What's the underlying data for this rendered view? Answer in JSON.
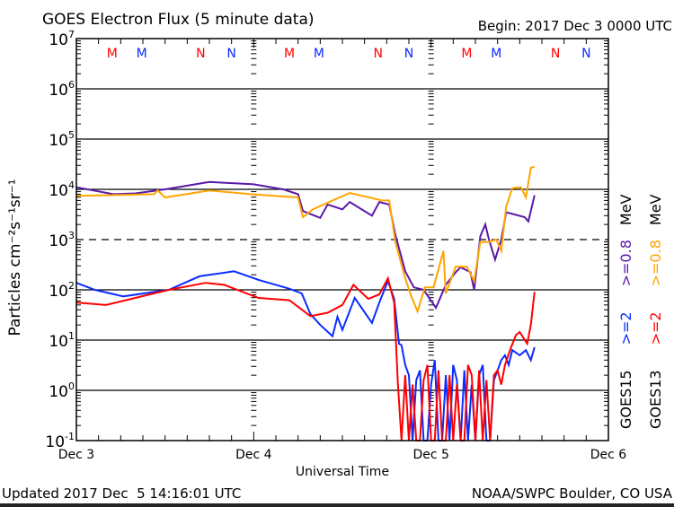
{
  "chart_data": {
    "type": "line",
    "title": "GOES Electron Flux (5 minute data)",
    "begin_label": "Begin: 2017 Dec 3 0000 UTC",
    "xlabel": "Universal Time",
    "ylabel": "Particles cm⁻²s⁻¹sr⁻¹",
    "y_scale": "log",
    "ylim": [
      0.1,
      10000000
    ],
    "y_tick_labels": [
      {
        "base": "10",
        "exp": "7",
        "value": 10000000
      },
      {
        "base": "10",
        "exp": "6",
        "value": 1000000
      },
      {
        "base": "10",
        "exp": "5",
        "value": 100000
      },
      {
        "base": "10",
        "exp": "4",
        "value": 10000
      },
      {
        "base": "10",
        "exp": "3",
        "value": 1000
      },
      {
        "base": "10",
        "exp": "2",
        "value": 100
      },
      {
        "base": "10",
        "exp": "1",
        "value": 10
      },
      {
        "base": "10",
        "exp": "0",
        "value": 1
      },
      {
        "base": "10",
        "exp": "-1",
        "value": 0.1
      }
    ],
    "xlim": [
      "12-03 00:00",
      "12-06 00:00"
    ],
    "x_tick_labels": [
      {
        "label": "Dec 3",
        "time": "12-03 00:00"
      },
      {
        "label": "Dec 4",
        "time": "12-04 00:00"
      },
      {
        "label": "Dec 5",
        "time": "12-05 00:00"
      },
      {
        "label": "Dec 6",
        "time": "12-06 00:00"
      }
    ],
    "threshold": {
      "value": 1000,
      "style": "dashed"
    },
    "grid": "horizontal at each decade",
    "markers": [
      {
        "label": "M",
        "color": "#ff0000",
        "time": "12-03 04:50"
      },
      {
        "label": "M",
        "color": "#0a2cff",
        "time": "12-03 08:50"
      },
      {
        "label": "N",
        "color": "#ff0000",
        "time": "12-03 16:50"
      },
      {
        "label": "N",
        "color": "#0a2cff",
        "time": "12-03 21:00"
      },
      {
        "label": "M",
        "color": "#ff0000",
        "time": "12-04 04:50"
      },
      {
        "label": "M",
        "color": "#0a2cff",
        "time": "12-04 08:50"
      },
      {
        "label": "N",
        "color": "#ff0000",
        "time": "12-04 16:50"
      },
      {
        "label": "N",
        "color": "#0a2cff",
        "time": "12-04 21:00"
      },
      {
        "label": "M",
        "color": "#ff0000",
        "time": "12-05 04:50"
      },
      {
        "label": "M",
        "color": "#0a2cff",
        "time": "12-05 08:50"
      },
      {
        "label": "N",
        "color": "#ff0000",
        "time": "12-05 16:50"
      },
      {
        "label": "N",
        "color": "#0a2cff",
        "time": "12-05 21:00"
      }
    ],
    "legend": {
      "placement": "right, vertical",
      "columns": [
        {
          "satellite": "GOES15",
          "entries": [
            {
              "label": ">=2",
              "color": "#0a2cff"
            },
            {
              "label": ">=0.8",
              "color": "#5a18a8"
            }
          ],
          "unit": "MeV"
        },
        {
          "satellite": "GOES13",
          "entries": [
            {
              "label": ">=2",
              "color": "#ff0000"
            },
            {
              "label": ">=0.8",
              "color": "#ffa500"
            }
          ],
          "unit": "MeV"
        }
      ]
    },
    "series": [
      {
        "name": "GOES15 >=0.8 MeV",
        "color": "#5a18a8",
        "points": [
          [
            "12-03 00:00",
            11000
          ],
          [
            "12-03 05:00",
            8000
          ],
          [
            "12-03 08:00",
            8300
          ],
          [
            "12-03 12:00",
            10000
          ],
          [
            "12-03 18:00",
            14000
          ],
          [
            "12-04 00:00",
            12600
          ],
          [
            "12-04 04:00",
            10000
          ],
          [
            "12-04 06:00",
            8000
          ],
          [
            "12-04 06:40",
            3700
          ],
          [
            "12-04 09:00",
            2700
          ],
          [
            "12-04 10:00",
            5000
          ],
          [
            "12-04 12:00",
            4000
          ],
          [
            "12-04 13:00",
            5600
          ],
          [
            "12-04 16:00",
            3000
          ],
          [
            "12-04 17:00",
            5600
          ],
          [
            "12-04 18:20",
            5000
          ],
          [
            "12-04 19:10",
            1260
          ],
          [
            "12-04 20:30",
            234
          ],
          [
            "12-04 21:40",
            112
          ],
          [
            "12-04 23:00",
            100
          ],
          [
            "12-05 00:40",
            44
          ],
          [
            "12-05 02:00",
            126
          ],
          [
            "12-05 03:20",
            224
          ],
          [
            "12-05 04:00",
            282
          ],
          [
            "12-05 05:20",
            224
          ],
          [
            "12-05 05:50",
            100
          ],
          [
            "12-05 06:40",
            1170
          ],
          [
            "12-05 07:20",
            2000
          ],
          [
            "12-05 07:50",
            1000
          ],
          [
            "12-05 08:40",
            400
          ],
          [
            "12-05 09:30",
            1000
          ],
          [
            "12-05 10:10",
            3500
          ],
          [
            "12-05 12:40",
            2800
          ],
          [
            "12-05 13:10",
            2300
          ],
          [
            "12-05 14:00",
            7600
          ]
        ]
      },
      {
        "name": "GOES13 >=0.8 MeV",
        "color": "#ffa500",
        "points": [
          [
            "12-03 00:00",
            7400
          ],
          [
            "12-03 03:00",
            7600
          ],
          [
            "12-03 10:30",
            8000
          ],
          [
            "12-03 11:00",
            9500
          ],
          [
            "12-03 12:00",
            6900
          ],
          [
            "12-03 18:00",
            9500
          ],
          [
            "12-04 00:00",
            7900
          ],
          [
            "12-04 06:00",
            6900
          ],
          [
            "12-04 06:40",
            2800
          ],
          [
            "12-04 08:00",
            4000
          ],
          [
            "12-04 11:00",
            6300
          ],
          [
            "12-04 13:00",
            8500
          ],
          [
            "12-04 17:20",
            6000
          ],
          [
            "12-04 18:20",
            6000
          ],
          [
            "12-04 19:10",
            900
          ],
          [
            "12-04 20:30",
            170
          ],
          [
            "12-04 21:20",
            74
          ],
          [
            "12-04 22:10",
            37
          ],
          [
            "12-04 23:10",
            112
          ],
          [
            "12-05 00:20",
            112
          ],
          [
            "12-05 01:40",
            590
          ],
          [
            "12-05 02:00",
            85
          ],
          [
            "12-05 03:20",
            290
          ],
          [
            "12-05 04:50",
            290
          ],
          [
            "12-05 05:50",
            150
          ],
          [
            "12-05 06:40",
            900
          ],
          [
            "12-05 07:50",
            900
          ],
          [
            "12-05 08:50",
            1000
          ],
          [
            "12-05 09:30",
            590
          ],
          [
            "12-05 10:10",
            4600
          ],
          [
            "12-05 11:00",
            10500
          ],
          [
            "12-05 12:10",
            11000
          ],
          [
            "12-05 12:50",
            6900
          ],
          [
            "12-05 13:30",
            27000
          ],
          [
            "12-05 14:00",
            28000
          ]
        ]
      },
      {
        "name": "GOES15 >=2 MeV",
        "color": "#0a2cff",
        "points": [
          [
            "12-03 00:00",
            138
          ],
          [
            "12-03 02:30",
            100
          ],
          [
            "12-03 06:20",
            74
          ],
          [
            "12-03 12:30",
            100
          ],
          [
            "12-03 16:40",
            186
          ],
          [
            "12-03 21:20",
            234
          ],
          [
            "12-04 00:40",
            158
          ],
          [
            "12-04 04:50",
            105
          ],
          [
            "12-04 06:30",
            85
          ],
          [
            "12-04 07:40",
            33
          ],
          [
            "12-04 09:00",
            20
          ],
          [
            "12-04 10:40",
            12
          ],
          [
            "12-04 11:20",
            29
          ],
          [
            "12-04 12:00",
            16
          ],
          [
            "12-04 13:40",
            69
          ],
          [
            "12-04 16:00",
            22
          ],
          [
            "12-04 17:00",
            56
          ],
          [
            "12-04 18:10",
            151
          ],
          [
            "12-04 19:00",
            66
          ],
          [
            "12-04 19:40",
            8.5
          ],
          [
            "12-04 20:00",
            7.9
          ],
          [
            "12-04 20:30",
            3.2
          ],
          [
            "12-04 21:00",
            2
          ],
          [
            "12-04 21:30",
            0.1
          ],
          [
            "12-04 22:00",
            1.6
          ],
          [
            "12-04 22:30",
            2.5
          ],
          [
            "12-04 23:00",
            0.1
          ],
          [
            "12-04 23:30",
            0.1
          ],
          [
            "12-05 00:00",
            1.3
          ],
          [
            "12-05 00:30",
            4
          ],
          [
            "12-05 01:00",
            0.1
          ],
          [
            "12-05 01:30",
            0.1
          ],
          [
            "12-05 02:00",
            2
          ],
          [
            "12-05 02:30",
            0.1
          ],
          [
            "12-05 03:00",
            3.2
          ],
          [
            "12-05 03:30",
            1.6
          ],
          [
            "12-05 04:00",
            0.1
          ],
          [
            "12-05 04:30",
            2.5
          ],
          [
            "12-05 05:00",
            0.1
          ],
          [
            "12-05 05:30",
            1.3
          ],
          [
            "12-05 06:00",
            0.1
          ],
          [
            "12-05 06:30",
            2
          ],
          [
            "12-05 07:00",
            3.2
          ],
          [
            "12-05 07:30",
            0.1
          ],
          [
            "12-05 08:00",
            0.1
          ],
          [
            "12-05 08:30",
            1.6
          ],
          [
            "12-05 09:00",
            2.5
          ],
          [
            "12-05 09:30",
            4
          ],
          [
            "12-05 10:00",
            5
          ],
          [
            "12-05 10:30",
            3.2
          ],
          [
            "12-05 11:00",
            6.3
          ],
          [
            "12-05 12:00",
            5
          ],
          [
            "12-05 12:50",
            6.3
          ],
          [
            "12-05 13:30",
            4
          ],
          [
            "12-05 14:00",
            7.2
          ]
        ]
      },
      {
        "name": "GOES13 >=2 MeV",
        "color": "#ff0000",
        "points": [
          [
            "12-03 00:00",
            56
          ],
          [
            "12-03 04:00",
            50
          ],
          [
            "12-03 12:30",
            100
          ],
          [
            "12-03 17:30",
            138
          ],
          [
            "12-03 20:00",
            126
          ],
          [
            "12-04 00:40",
            69
          ],
          [
            "12-04 04:50",
            62
          ],
          [
            "12-04 07:40",
            30
          ],
          [
            "12-04 10:00",
            35
          ],
          [
            "12-04 12:00",
            50
          ],
          [
            "12-04 13:30",
            126
          ],
          [
            "12-04 15:30",
            66
          ],
          [
            "12-04 17:00",
            81
          ],
          [
            "12-04 18:10",
            170
          ],
          [
            "12-04 19:00",
            56
          ],
          [
            "12-04 19:30",
            1.4
          ],
          [
            "12-04 20:00",
            0.1
          ],
          [
            "12-04 20:30",
            2
          ],
          [
            "12-04 21:00",
            0.1
          ],
          [
            "12-04 21:30",
            1.3
          ],
          [
            "12-04 22:00",
            0.1
          ],
          [
            "12-04 22:30",
            0.1
          ],
          [
            "12-04 23:00",
            1.6
          ],
          [
            "12-04 23:30",
            3.2
          ],
          [
            "12-05 00:00",
            0.1
          ],
          [
            "12-05 00:30",
            0.1
          ],
          [
            "12-05 01:00",
            2.5
          ],
          [
            "12-05 01:30",
            0.1
          ],
          [
            "12-05 02:00",
            0.1
          ],
          [
            "12-05 02:30",
            2
          ],
          [
            "12-05 03:00",
            0.1
          ],
          [
            "12-05 03:30",
            1.3
          ],
          [
            "12-05 04:00",
            0.1
          ],
          [
            "12-05 04:30",
            0.1
          ],
          [
            "12-05 05:00",
            3.2
          ],
          [
            "12-05 05:30",
            2
          ],
          [
            "12-05 06:00",
            0.1
          ],
          [
            "12-05 06:30",
            2.5
          ],
          [
            "12-05 07:00",
            0.1
          ],
          [
            "12-05 07:30",
            1.6
          ],
          [
            "12-05 08:00",
            0.1
          ],
          [
            "12-05 08:30",
            2
          ],
          [
            "12-05 09:00",
            2.5
          ],
          [
            "12-05 09:30",
            1.3
          ],
          [
            "12-05 10:00",
            3.2
          ],
          [
            "12-05 10:50",
            7.2
          ],
          [
            "12-05 11:30",
            12.6
          ],
          [
            "12-05 12:00",
            14.5
          ],
          [
            "12-05 13:00",
            8.5
          ],
          [
            "12-05 13:30",
            20
          ],
          [
            "12-05 14:00",
            91
          ]
        ]
      }
    ]
  },
  "footer": {
    "updated": "Updated 2017 Dec  5 14:16:01 UTC",
    "credit": "NOAA/SWPC Boulder, CO USA"
  }
}
